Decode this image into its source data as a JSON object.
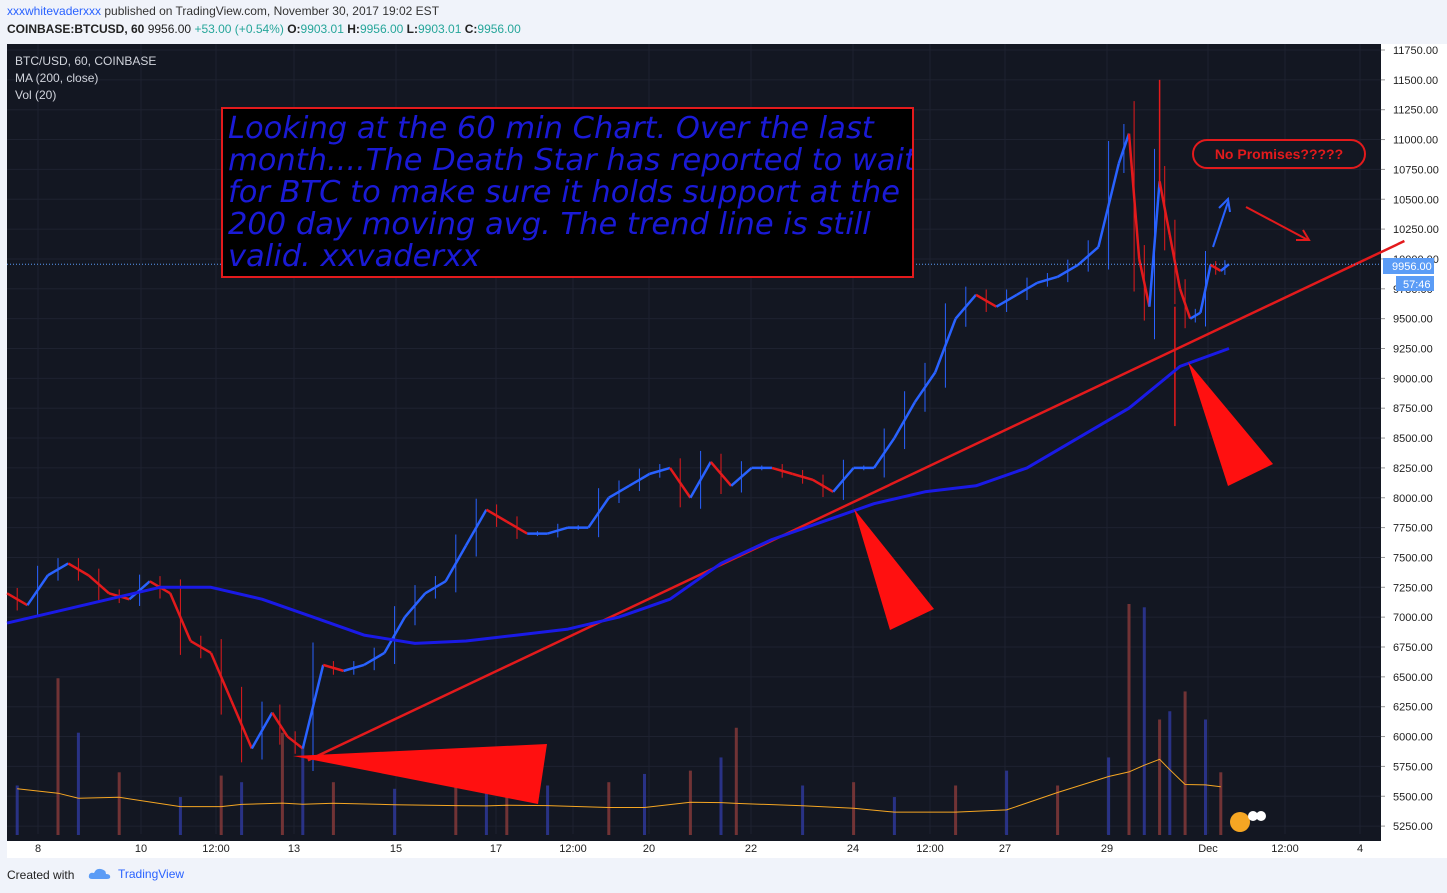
{
  "header": {
    "user": "xxxwhitevaderxxx",
    "published": " published on TradingView.com, November 30, 2017 19:02 EST",
    "symbol": "COINBASE:BTCUSD, 60",
    "last": "9956.00",
    "change": "+53.00 (+0.54%)",
    "o_label": "O:",
    "o_val": "9903.01",
    "h_label": "H:",
    "h_val": "9956.00",
    "l_label": "L:",
    "l_val": "9903.01",
    "c_label": "C:",
    "c_val": "9956.00"
  },
  "legend": {
    "line1": "BTC/USD, 60, COINBASE",
    "line2": "MA (200, close)",
    "line3": "Vol (20)"
  },
  "annotation": {
    "text": "Looking at the 60 min Chart. Over the last month....The Death Star has reported to wait for BTC to make sure it holds support at the 200 day moving avg. The trend line is still valid. xxvaderxx"
  },
  "callout": {
    "text": "No Promises?????"
  },
  "price_tags": {
    "last": "9956.00",
    "countdown": "57:46"
  },
  "footer": {
    "created_with": "Created with",
    "brand": "TradingView"
  },
  "colors": {
    "background": "#131722",
    "candle_up": "#2962ff",
    "candle_down": "#e31a1c",
    "ma": "#1a1ae6",
    "trendline": "#e31a1c",
    "vol_ma": "#f5a623"
  },
  "chart_data": {
    "type": "line",
    "title": "BTC/USD, 60, COINBASE",
    "x_labels": [
      "8",
      "10",
      "12:00",
      "13",
      "15",
      "17",
      "12:00",
      "20",
      "22",
      "24",
      "12:00",
      "27",
      "29",
      "Dec",
      "12:00",
      "4"
    ],
    "y_ticks": [
      5250,
      5500,
      5750,
      6000,
      6250,
      6500,
      6750,
      7000,
      7250,
      7500,
      7750,
      8000,
      8250,
      8500,
      8750,
      9000,
      9250,
      9500,
      9750,
      10000,
      10250,
      10500,
      10750,
      11000,
      11250,
      11500,
      11750
    ],
    "ylim": [
      5150,
      11800
    ],
    "log_scale": false,
    "grid": true,
    "price_series": {
      "name": "BTC/USD",
      "day": [
        7.0,
        7.4,
        7.8,
        8.2,
        8.6,
        9.0,
        9.4,
        9.8,
        10.2,
        10.6,
        11.0,
        11.4,
        11.8,
        12.2,
        12.5,
        12.8,
        13.2,
        13.6,
        14.0,
        14.4,
        14.8,
        15.2,
        15.6,
        16.0,
        16.4,
        16.8,
        17.2,
        17.6,
        18.0,
        18.4,
        18.8,
        19.2,
        19.6,
        20.0,
        20.4,
        20.8,
        21.2,
        21.6,
        22.0,
        22.4,
        22.8,
        23.2,
        23.6,
        24.0,
        24.4,
        24.8,
        25.2,
        25.6,
        26.0,
        26.4,
        26.8,
        27.2,
        27.6,
        28.0,
        28.4,
        28.8,
        29.0,
        29.2,
        29.4,
        29.6,
        29.8,
        30.0,
        30.2,
        30.4,
        30.6,
        30.8,
        30.96
      ],
      "close": [
        7200,
        7100,
        7350,
        7450,
        7350,
        7200,
        7150,
        7300,
        7200,
        6800,
        6700,
        6300,
        5900,
        6200,
        6000,
        5900,
        6600,
        6550,
        6600,
        6700,
        7000,
        7200,
        7300,
        7600,
        7900,
        7800,
        7700,
        7700,
        7750,
        7750,
        8000,
        8100,
        8200,
        8250,
        8000,
        8300,
        8100,
        8250,
        8250,
        8200,
        8150,
        8050,
        8250,
        8250,
        8500,
        8800,
        9050,
        9500,
        9700,
        9600,
        9700,
        9800,
        9850,
        9950,
        10100,
        10800,
        11050,
        10000,
        9600,
        10650,
        10200,
        9750,
        9500,
        9550,
        9950,
        9900,
        9956
      ]
    },
    "ma200": {
      "name": "MA (200, close)",
      "day": [
        7.0,
        8.0,
        9.0,
        10.0,
        11.0,
        12.0,
        13.0,
        14.0,
        15.0,
        16.0,
        17.0,
        18.0,
        19.0,
        20.0,
        21.0,
        22.0,
        23.0,
        24.0,
        25.0,
        26.0,
        27.0,
        28.0,
        29.0,
        30.0,
        30.96
      ],
      "value": [
        6950,
        7050,
        7150,
        7250,
        7250,
        7150,
        7000,
        6850,
        6780,
        6800,
        6850,
        6900,
        7000,
        7150,
        7450,
        7650,
        7800,
        7950,
        8050,
        8100,
        8250,
        8500,
        8750,
        9100,
        9250
      ]
    },
    "trendline": {
      "from": {
        "day": 12.9,
        "price": 5800
      },
      "to": {
        "day": 34.4,
        "price": 10150
      }
    },
    "volume": {
      "name": "Vol (20)",
      "day": [
        7.2,
        8.0,
        8.4,
        9.2,
        10.4,
        11.2,
        11.6,
        12.4,
        12.8,
        13.4,
        14.6,
        15.8,
        16.4,
        16.8,
        17.6,
        18.8,
        19.5,
        20.4,
        21.0,
        21.3,
        22.6,
        23.6,
        24.4,
        25.6,
        26.6,
        27.6,
        28.6,
        29.0,
        29.3,
        29.6,
        29.8,
        30.1,
        30.5,
        30.8
      ],
      "value": [
        300,
        950,
        620,
        380,
        230,
        360,
        320,
        620,
        530,
        320,
        280,
        390,
        520,
        470,
        300,
        320,
        370,
        390,
        470,
        650,
        300,
        320,
        230,
        300,
        390,
        300,
        470,
        1400,
        1380,
        700,
        750,
        870,
        700,
        380
      ]
    }
  }
}
